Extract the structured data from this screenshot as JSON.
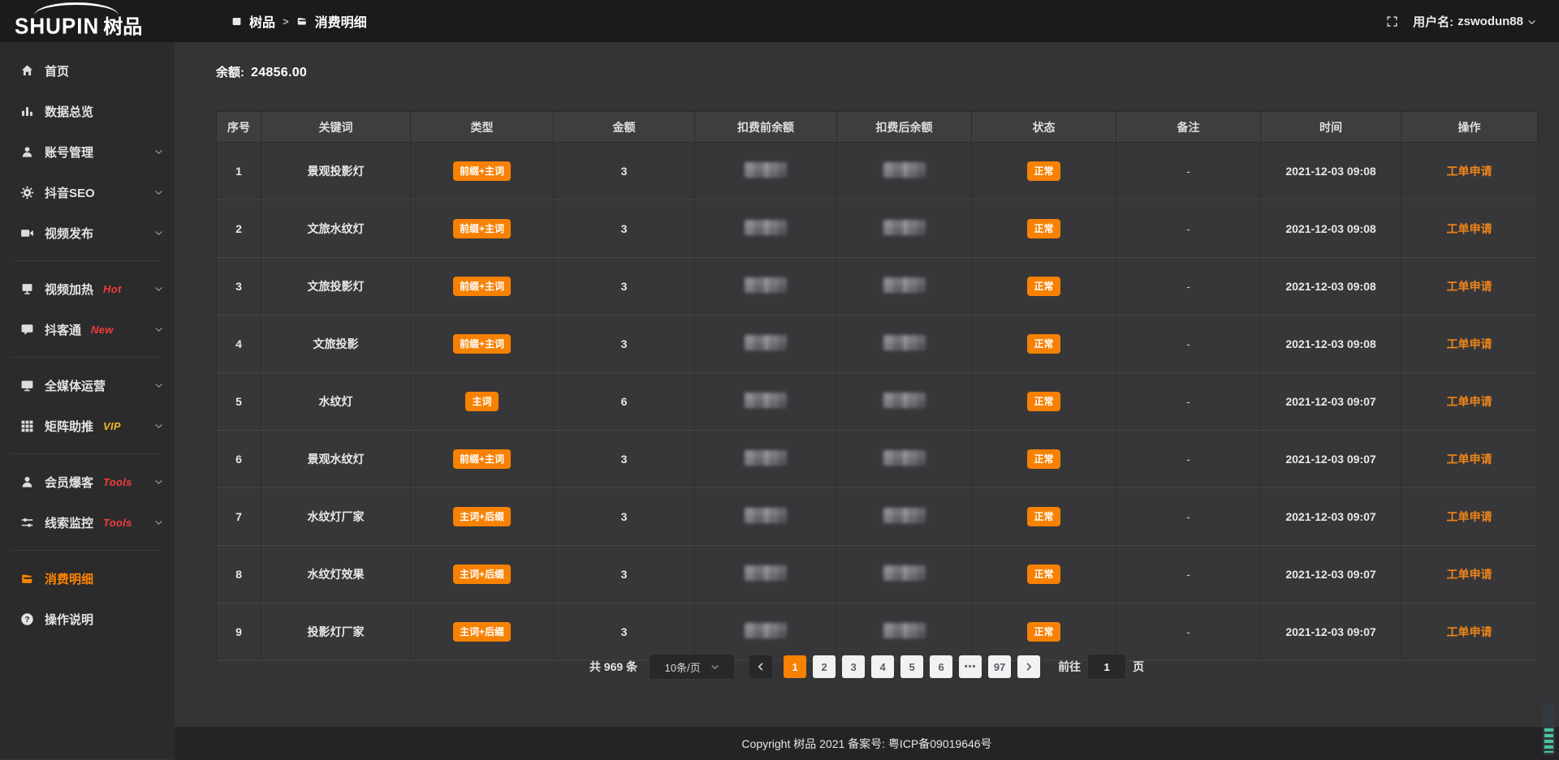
{
  "brand": {
    "logo_en": "SHUPIN",
    "logo_cn": "树品"
  },
  "topbar": {
    "breadcrumb_home": "树品",
    "breadcrumb_separator": ">",
    "breadcrumb_current": "消费明细",
    "username_label": "用户名:",
    "username": "zswodun88"
  },
  "sidebar": {
    "items": [
      {
        "label": "首页",
        "icon": "home"
      },
      {
        "label": "数据总览",
        "icon": "chart"
      },
      {
        "label": "账号管理",
        "icon": "user",
        "chevron": true
      },
      {
        "label": "抖音SEO",
        "icon": "gear",
        "chevron": true
      },
      {
        "label": "视频发布",
        "icon": "video",
        "chevron": true,
        "divider_after": true
      },
      {
        "label": "视频加热",
        "icon": "heat",
        "tag": "Hot",
        "tag_color": "#f23c3c",
        "chevron": true
      },
      {
        "label": "抖客通",
        "icon": "chat",
        "tag": "New",
        "tag_color": "#f23c3c",
        "chevron": true,
        "divider_after": true
      },
      {
        "label": "全媒体运营",
        "icon": "monitor",
        "chevron": true
      },
      {
        "label": "矩阵助推",
        "icon": "grid",
        "tag": "VIP",
        "tag_color": "#f0b429",
        "chevron": true,
        "divider_after": true
      },
      {
        "label": "会员爆客",
        "icon": "member",
        "tag": "Tools",
        "tag_color": "#f23c3c",
        "chevron": true
      },
      {
        "label": "线索监控",
        "icon": "sliders",
        "tag": "Tools",
        "tag_color": "#f23c3c",
        "chevron": true,
        "divider_after": true
      },
      {
        "label": "消费明细",
        "icon": "wallet",
        "active": true
      },
      {
        "label": "操作说明",
        "icon": "question"
      }
    ]
  },
  "main": {
    "balance_label": "余额:",
    "balance_value": "24856.00",
    "table": {
      "columns": [
        "序号",
        "关键词",
        "类型",
        "金额",
        "扣费前余额",
        "扣费后余额",
        "状态",
        "备注",
        "时间",
        "操作"
      ],
      "masked_columns": [
        "扣费前余额",
        "扣费后余额"
      ],
      "rows": [
        {
          "index": "1",
          "keyword": "景观投影灯",
          "type": "前缀+主词",
          "amount": "3",
          "status": "正常",
          "remark": "-",
          "time": "2021-12-03 09:08",
          "action": "工单申请"
        },
        {
          "index": "2",
          "keyword": "文旅水纹灯",
          "type": "前缀+主词",
          "amount": "3",
          "status": "正常",
          "remark": "-",
          "time": "2021-12-03 09:08",
          "action": "工单申请"
        },
        {
          "index": "3",
          "keyword": "文旅投影灯",
          "type": "前缀+主词",
          "amount": "3",
          "status": "正常",
          "remark": "-",
          "time": "2021-12-03 09:08",
          "action": "工单申请"
        },
        {
          "index": "4",
          "keyword": "文旅投影",
          "type": "前缀+主词",
          "amount": "3",
          "status": "正常",
          "remark": "-",
          "time": "2021-12-03 09:08",
          "action": "工单申请"
        },
        {
          "index": "5",
          "keyword": "水纹灯",
          "type": "主词",
          "amount": "6",
          "status": "正常",
          "remark": "-",
          "time": "2021-12-03 09:07",
          "action": "工单申请"
        },
        {
          "index": "6",
          "keyword": "景观水纹灯",
          "type": "前缀+主词",
          "amount": "3",
          "status": "正常",
          "remark": "-",
          "time": "2021-12-03 09:07",
          "action": "工单申请"
        },
        {
          "index": "7",
          "keyword": "水纹灯厂家",
          "type": "主词+后缀",
          "amount": "3",
          "status": "正常",
          "remark": "-",
          "time": "2021-12-03 09:07",
          "action": "工单申请"
        },
        {
          "index": "8",
          "keyword": "水纹灯效果",
          "type": "主词+后缀",
          "amount": "3",
          "status": "正常",
          "remark": "-",
          "time": "2021-12-03 09:07",
          "action": "工单申请"
        },
        {
          "index": "9",
          "keyword": "投影灯厂家",
          "type": "主词+后缀",
          "amount": "3",
          "status": "正常",
          "remark": "-",
          "time": "2021-12-03 09:07",
          "action": "工单申请"
        }
      ]
    },
    "pagination": {
      "total": "共 969 条",
      "page_size": "10条/页",
      "pages": [
        "1",
        "2",
        "3",
        "4",
        "5",
        "6",
        "•••",
        "97"
      ],
      "active_page": "1",
      "goto_label": "前往",
      "goto_value": "1",
      "goto_suffix": "页"
    }
  },
  "footer": {
    "copyright": "Copyright 树品 2021 备案号: 粤ICP备09019646号"
  },
  "colors": {
    "accent_orange": "#f78102",
    "active_menu_text": "#ff8400",
    "tag_red": "#f23c3c",
    "tag_vip_yellow": "#f0b429",
    "action_link": "#f08519"
  }
}
